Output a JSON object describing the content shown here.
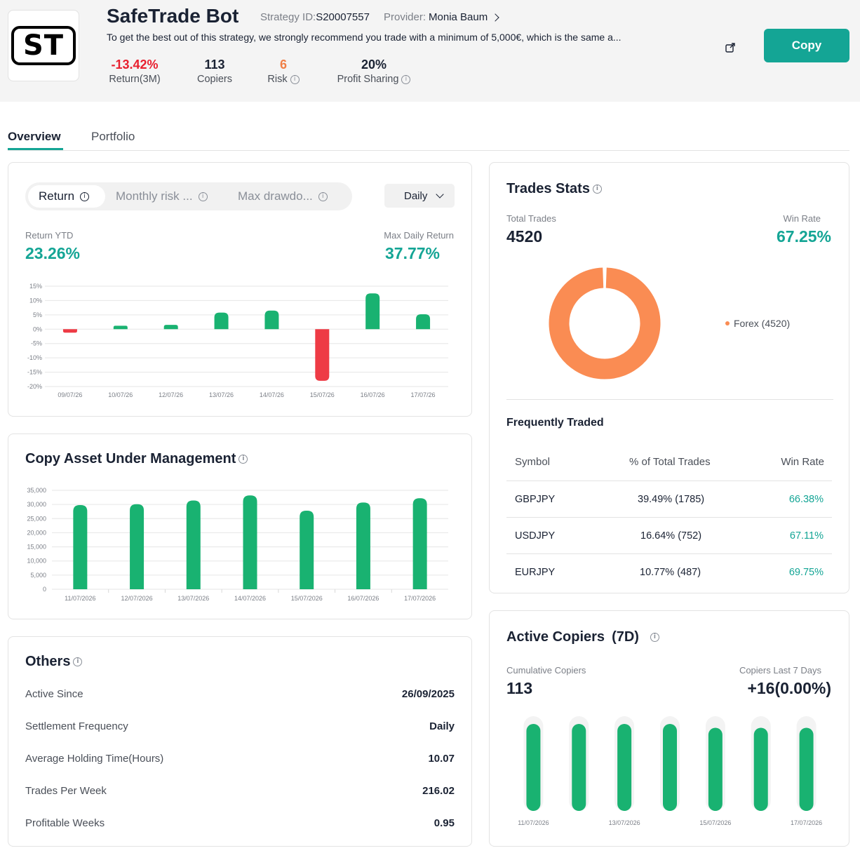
{
  "header": {
    "logo_text": "ST",
    "title": "SafeTrade Bot",
    "strategy_id_label": "Strategy ID:",
    "strategy_id": "S20007557",
    "provider_label": "Provider:",
    "provider": "Monia Baum",
    "description": "To get the best out of this strategy, we strongly recommend you trade with a minimum of 5,000€, which is the same a...",
    "copy_label": "Copy",
    "metrics": [
      {
        "value": "-13.42%",
        "label": "Return(3M)",
        "color": "#e8202f"
      },
      {
        "value": "113",
        "label": "Copiers",
        "color": "#1a2233"
      },
      {
        "value": "6",
        "label": "Risk",
        "color": "#f07f46"
      },
      {
        "value": "20%",
        "label": "Profit Sharing",
        "color": "#1a2233"
      }
    ]
  },
  "tabs": [
    "Overview",
    "Portfolio"
  ],
  "return_card": {
    "segments": [
      "Return",
      "Monthly risk ...",
      "Max drawdo..."
    ],
    "period": "Daily",
    "ytd_label": "Return YTD",
    "ytd_value": "23.26%",
    "max_label": "Max Daily Return",
    "max_value": "37.77%"
  },
  "aum_card": {
    "title": "Copy Asset Under Management"
  },
  "others": {
    "title": "Others",
    "rows": [
      {
        "label": "Active Since",
        "value": "26/09/2025"
      },
      {
        "label": "Settlement Frequency",
        "value": "Daily"
      },
      {
        "label": "Average Holding Time(Hours)",
        "value": "10.07"
      },
      {
        "label": "Trades Per Week",
        "value": "216.02"
      },
      {
        "label": "Profitable Weeks",
        "value": "0.95"
      }
    ]
  },
  "trades_stats": {
    "title": "Trades Stats",
    "total_label": "Total Trades",
    "total_value": "4520",
    "win_label": "Win Rate",
    "win_value": "67.25%",
    "legend": "Forex (4520)",
    "donut_color": "#fa8c53"
  },
  "frequently_traded": {
    "title": "Frequently Traded",
    "headers": [
      "Symbol",
      "% of Total Trades",
      "Win Rate"
    ],
    "rows": [
      {
        "symbol": "GBPJPY",
        "pct": "39.49% (1785)",
        "win": "66.38%"
      },
      {
        "symbol": "USDJPY",
        "pct": "16.64% (752)",
        "win": "67.11%"
      },
      {
        "symbol": "EURJPY",
        "pct": "10.77% (487)",
        "win": "69.75%"
      }
    ]
  },
  "active_copiers": {
    "title": "Active Copiers",
    "period": "(7D)",
    "cum_label": "Cumulative Copiers",
    "cum_value": "113",
    "last7_label": "Copiers Last 7 Days",
    "last7_value": "+16(0.00%)"
  },
  "colors": {
    "accent": "#14a595",
    "positive": "#19b271",
    "negative": "#ee3b45"
  },
  "chart_data": [
    {
      "type": "bar",
      "categories": [
        "09/07/26",
        "10/07/26",
        "12/07/26",
        "13/07/26",
        "14/07/26",
        "15/07/26",
        "16/07/26",
        "17/07/26"
      ],
      "values": [
        -1.2,
        1.2,
        1.5,
        5.8,
        6.5,
        -18.0,
        12.5,
        5.2
      ],
      "ylim": [
        -20,
        15
      ],
      "yticks": [
        "15%",
        "10%",
        "5%",
        "0%",
        "-5%",
        "-10%",
        "-15%",
        "-20%"
      ],
      "ytick_values": [
        15,
        10,
        5,
        0,
        -5,
        -10,
        -15,
        -20
      ],
      "title": "",
      "xlabel": "",
      "ylabel": ""
    },
    {
      "type": "bar",
      "categories": [
        "11/07/2026",
        "12/07/2026",
        "13/07/2026",
        "14/07/2026",
        "15/07/2026",
        "16/07/2026",
        "17/07/2026"
      ],
      "values": [
        29800,
        30100,
        31400,
        33200,
        27800,
        30700,
        32200
      ],
      "ylim": [
        0,
        35000
      ],
      "yticks": [
        "35,000",
        "30,000",
        "25,000",
        "20,000",
        "15,000",
        "10,000",
        "5,000",
        "0"
      ],
      "ytick_values": [
        35000,
        30000,
        25000,
        20000,
        15000,
        10000,
        5000,
        0
      ],
      "title": "Copy Asset Under Management",
      "xlabel": "",
      "ylabel": ""
    },
    {
      "type": "bar",
      "categories": [
        "11/07/2026",
        "12/07/2026",
        "13/07/2026",
        "14/07/2026",
        "15/07/2026",
        "16/07/2026",
        "17/07/2026"
      ],
      "category_labels_shown": [
        "11/07/2026",
        "",
        "13/07/2026",
        "",
        "15/07/2026",
        "",
        "17/07/2026"
      ],
      "values": [
        113,
        113,
        113,
        113,
        108,
        108,
        108
      ],
      "ylim": [
        0,
        123
      ],
      "title": "Active Copiers",
      "xlabel": "",
      "ylabel": ""
    },
    {
      "type": "pie",
      "categories": [
        "Forex"
      ],
      "values": [
        4520
      ],
      "title": "Trades Stats"
    }
  ]
}
